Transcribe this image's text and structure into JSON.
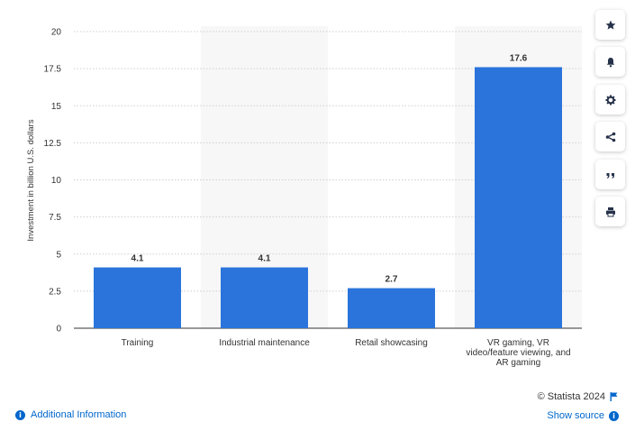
{
  "chart_data": {
    "type": "bar",
    "categories": [
      "Training",
      "Industrial maintenance",
      "Retail showcasing",
      "VR gaming, VR video/feature viewing, and AR gaming"
    ],
    "category_lines": [
      [
        "Training"
      ],
      [
        "Industrial maintenance"
      ],
      [
        "Retail showcasing"
      ],
      [
        "VR gaming, VR",
        "video/feature viewing, and",
        "AR gaming"
      ]
    ],
    "values": [
      4.1,
      4.1,
      2.7,
      17.6
    ],
    "value_labels": [
      "4.1",
      "4.1",
      "2.7",
      "17.6"
    ],
    "ylabel": "Investment in billion U.S. dollars",
    "yticks": [
      "0",
      "2.5",
      "5",
      "7.5",
      "10",
      "12.5",
      "15",
      "17.5",
      "20"
    ],
    "ylim": [
      0,
      20
    ],
    "bar_color": "#2a74dc",
    "grid": true
  },
  "sidebar": {
    "buttons": [
      {
        "name": "favorite-button",
        "icon": "star-icon"
      },
      {
        "name": "notification-button",
        "icon": "bell-icon"
      },
      {
        "name": "settings-button",
        "icon": "gear-icon"
      },
      {
        "name": "share-button",
        "icon": "share-icon"
      },
      {
        "name": "cite-button",
        "icon": "quote-icon"
      },
      {
        "name": "print-button",
        "icon": "printer-icon"
      }
    ]
  },
  "footer": {
    "credit": "© Statista 2024",
    "show_source": "Show source",
    "additional_info": "Additional Information"
  }
}
